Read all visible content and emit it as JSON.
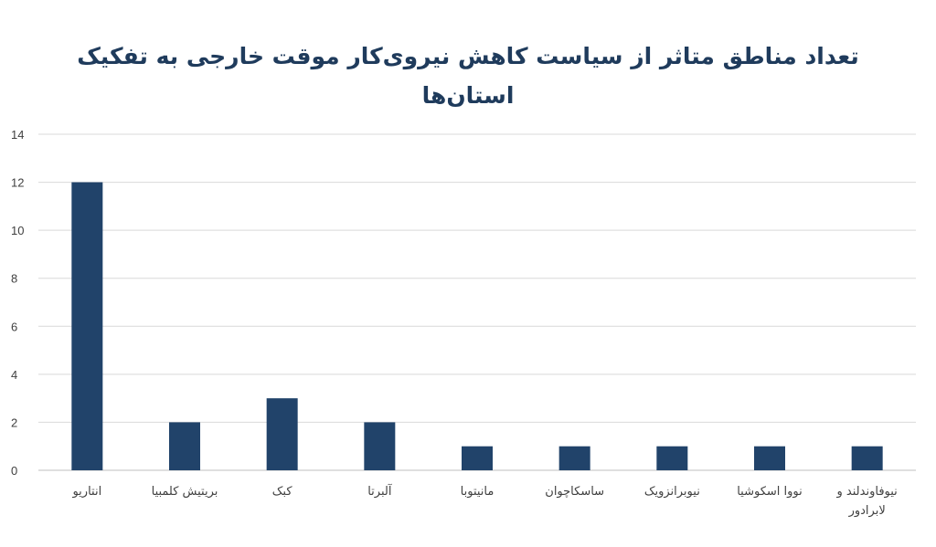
{
  "chart_data": {
    "type": "bar",
    "title_lines": [
      "تعداد مناطق متاثر از سیاست کاهش نیروی‌کار موقت خارجی به تفکیک",
      "استان‌ها"
    ],
    "categories": [
      "انتاریو",
      "بریتیش کلمبیا",
      "کبک",
      "آلبرتا",
      "مانیتوبا",
      "ساسکاچوان",
      "نیوبرانزویک",
      "نووا اسکوشیا",
      "نیوفاوندلند و لابرادور"
    ],
    "category_lines": [
      [
        "انتاریو"
      ],
      [
        "بریتیش کلمبیا"
      ],
      [
        "کبک"
      ],
      [
        "آلبرتا"
      ],
      [
        "مانیتوبا"
      ],
      [
        "ساسکاچوان"
      ],
      [
        "نیوبرانزویک"
      ],
      [
        "نووا اسکوشیا"
      ],
      [
        "نیوفاوندلند و",
        "لابرادور"
      ]
    ],
    "values": [
      12,
      2,
      3,
      2,
      1,
      1,
      1,
      1,
      1
    ],
    "yticks": [
      "0",
      "2",
      "4",
      "6",
      "8",
      "10",
      "12",
      "14"
    ],
    "ylim": [
      0,
      14
    ],
    "grid": true,
    "legend": "none",
    "bar_color": "#21436a",
    "title_color": "#1f3b5c"
  }
}
